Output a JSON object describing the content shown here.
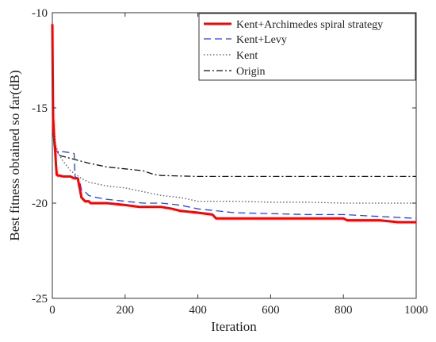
{
  "chart_data": {
    "type": "line",
    "title": "",
    "xlabel": "Iteration",
    "ylabel": "Best fitness obtained so far(dB)",
    "xlim": [
      0,
      1000
    ],
    "ylim": [
      -25,
      -10
    ],
    "xticks": [
      0,
      200,
      400,
      600,
      800,
      1000
    ],
    "yticks": [
      -25,
      -20,
      -15,
      -10
    ],
    "xtick_labels": [
      "0",
      "200",
      "400",
      "600",
      "800",
      "1000"
    ],
    "ytick_labels": [
      "-25",
      "-20",
      "-15",
      "-10"
    ],
    "grid": false,
    "legend_position": "top-right",
    "series": [
      {
        "name": "Kent+Archimedes spiral strategy",
        "color": "#ff0000",
        "style": "solid",
        "x": [
          0,
          2,
          4,
          6,
          8,
          10,
          12,
          15,
          20,
          30,
          50,
          60,
          70,
          75,
          80,
          90,
          100,
          105,
          150,
          200,
          240,
          300,
          330,
          350,
          400,
          440,
          450,
          500,
          600,
          700,
          800,
          810,
          820,
          900,
          950,
          1000
        ],
        "y": [
          -10.6,
          -15.5,
          -16.3,
          -16.9,
          -17.3,
          -18.0,
          -18.5,
          -18.55,
          -18.55,
          -18.6,
          -18.6,
          -18.7,
          -18.7,
          -19.2,
          -19.7,
          -19.9,
          -19.9,
          -20.0,
          -20.0,
          -20.1,
          -20.2,
          -20.2,
          -20.3,
          -20.4,
          -20.5,
          -20.6,
          -20.8,
          -20.8,
          -20.8,
          -20.8,
          -20.8,
          -20.9,
          -20.9,
          -20.9,
          -21.0,
          -21.0
        ]
      },
      {
        "name": "Kent+Levy",
        "color": "#1f3fff",
        "style": "dashed",
        "x": [
          0,
          2,
          4,
          6,
          8,
          10,
          20,
          30,
          50,
          60,
          62,
          70,
          75,
          80,
          90,
          100,
          120,
          150,
          200,
          250,
          300,
          350,
          400,
          450,
          500,
          600,
          700,
          800,
          850,
          900,
          950,
          1000
        ],
        "y": [
          -10.6,
          -15.0,
          -16.5,
          -17.0,
          -17.2,
          -17.25,
          -17.3,
          -17.3,
          -17.35,
          -17.4,
          -18.6,
          -18.7,
          -18.8,
          -19.3,
          -19.4,
          -19.6,
          -19.7,
          -19.8,
          -19.9,
          -20.0,
          -20.0,
          -20.1,
          -20.3,
          -20.4,
          -20.5,
          -20.55,
          -20.6,
          -20.6,
          -20.65,
          -20.7,
          -20.75,
          -20.8
        ]
      },
      {
        "name": "Kent",
        "color": "#555555",
        "style": "dotted",
        "x": [
          0,
          2,
          5,
          10,
          20,
          30,
          50,
          80,
          100,
          150,
          200,
          250,
          300,
          350,
          400,
          500,
          600,
          700,
          800,
          900,
          1000
        ],
        "y": [
          -10.8,
          -14.5,
          -16.0,
          -17.0,
          -17.5,
          -17.8,
          -18.3,
          -18.7,
          -18.9,
          -19.1,
          -19.2,
          -19.4,
          -19.6,
          -19.7,
          -19.9,
          -19.9,
          -19.95,
          -19.95,
          -20.0,
          -20.0,
          -20.0
        ]
      },
      {
        "name": "Origin",
        "color": "#111111",
        "style": "dashdot",
        "x": [
          0,
          2,
          5,
          10,
          20,
          40,
          60,
          80,
          100,
          150,
          200,
          250,
          280,
          300,
          400,
          500,
          600,
          800,
          1000
        ],
        "y": [
          -10.9,
          -14.0,
          -16.3,
          -17.2,
          -17.5,
          -17.6,
          -17.7,
          -17.8,
          -17.9,
          -18.1,
          -18.2,
          -18.3,
          -18.5,
          -18.55,
          -18.6,
          -18.6,
          -18.6,
          -18.6,
          -18.6
        ]
      }
    ]
  }
}
